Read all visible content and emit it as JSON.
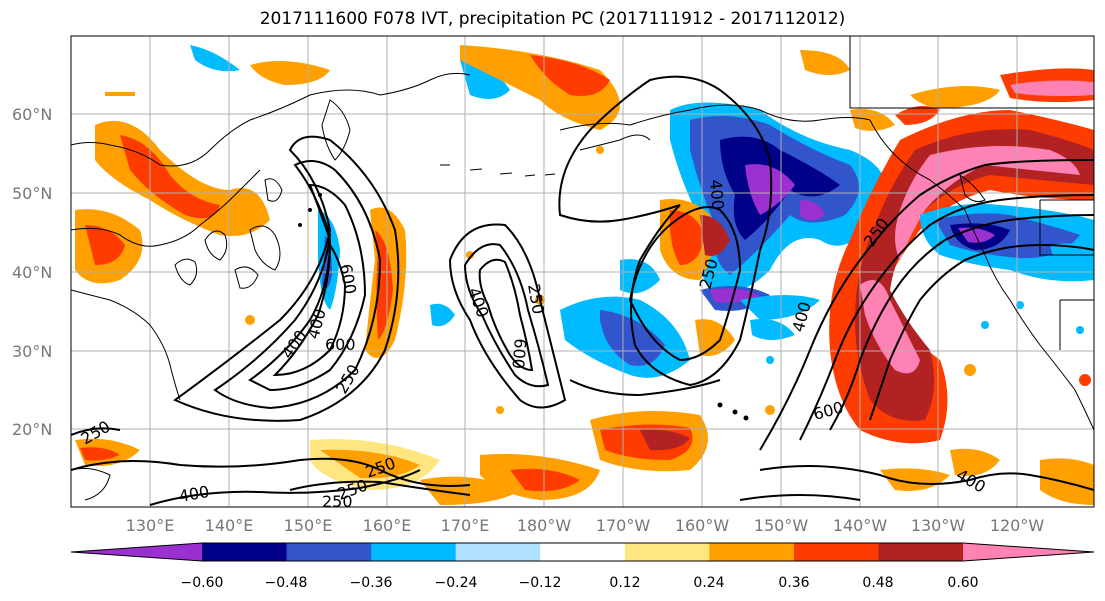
{
  "title": "2017111600 F078 IVT, precipitation PC (2017111912 - 2017112012)",
  "map": {
    "lat_labels": [
      "20°N",
      "30°N",
      "40°N",
      "50°N",
      "60°N"
    ],
    "lon_labels": [
      "130°E",
      "140°E",
      "150°E",
      "160°E",
      "170°E",
      "180°W",
      "170°W",
      "160°W",
      "150°W",
      "140°W",
      "130°W",
      "120°W"
    ],
    "ivt_contour_labels": [
      {
        "text": "250"
      },
      {
        "text": "400"
      },
      {
        "text": "600"
      },
      {
        "text": "400"
      },
      {
        "text": "600"
      },
      {
        "text": "250"
      },
      {
        "text": "250"
      },
      {
        "text": "400"
      },
      {
        "text": "600"
      },
      {
        "text": "400"
      },
      {
        "text": "400"
      },
      {
        "text": "250"
      },
      {
        "text": "600"
      },
      {
        "text": "250"
      },
      {
        "text": "400"
      },
      {
        "text": "250"
      },
      {
        "text": "400"
      },
      {
        "text": "250"
      },
      {
        "text": "250"
      }
    ]
  },
  "colorbar": {
    "tick_labels": [
      "−0.60",
      "−0.48",
      "−0.36",
      "−0.24",
      "−0.12",
      "0.12",
      "0.24",
      "0.36",
      "0.48",
      "0.60"
    ],
    "colors": [
      "#9b30d0",
      "#000088",
      "#3355cc",
      "#00bbff",
      "#b0e0ff",
      "#ffffff",
      "#ffe680",
      "#ffa000",
      "#ff3c00",
      "#b22222",
      "#ff82b4"
    ]
  },
  "colors": {
    "pos_weak": "#ffe680",
    "pos_1": "#ffa000",
    "pos_2": "#ff3c00",
    "pos_3": "#b22222",
    "pos_4": "#ff82b4",
    "neg_weak": "#b0e0ff",
    "neg_1": "#00bbff",
    "neg_2": "#3355cc",
    "neg_3": "#000088",
    "neg_4": "#9b30d0"
  }
}
